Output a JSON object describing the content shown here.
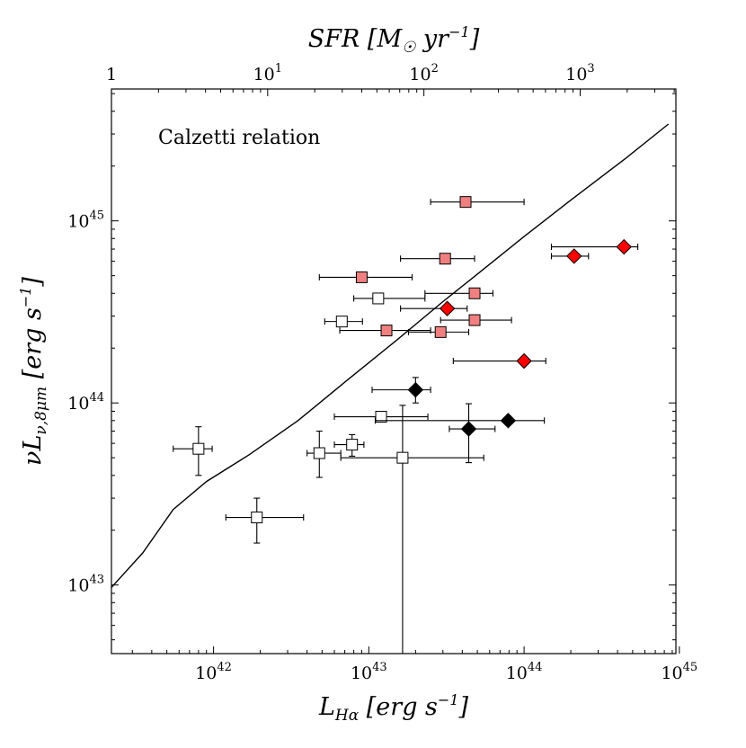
{
  "chart_data": {
    "type": "scatter",
    "title": "",
    "xlabel": "L_Hα [erg s^-1]",
    "ylabel": "νL_ν,8μm [erg s^-1]",
    "top_xlabel": "SFR [M_☉ yr^-1]",
    "xscale": "log",
    "yscale": "log",
    "xlim": [
      2.2e+41,
      9.5e+44
    ],
    "ylim": [
      4.2e+42,
      5.3e+45
    ],
    "top_xlim": [
      1,
      4100
    ],
    "grid": false,
    "x_ticks": [
      {
        "value": 1e+42,
        "base": "10",
        "exp": "42"
      },
      {
        "value": 1e+43,
        "base": "10",
        "exp": "43"
      },
      {
        "value": 1e+44,
        "base": "10",
        "exp": "44"
      },
      {
        "value": 1e+45,
        "base": "10",
        "exp": "45"
      }
    ],
    "y_ticks": [
      {
        "value": 1e+43,
        "base": "10",
        "exp": "43"
      },
      {
        "value": 1e+44,
        "base": "10",
        "exp": "44"
      },
      {
        "value": 1e+45,
        "base": "10",
        "exp": "45"
      }
    ],
    "top_ticks": [
      {
        "value": 1,
        "base": "10",
        "exp": "0",
        "plain": "1"
      },
      {
        "value": 10,
        "base": "10",
        "exp": "1"
      },
      {
        "value": 100,
        "base": "10",
        "exp": "2"
      },
      {
        "value": 1000,
        "base": "10",
        "exp": "3"
      }
    ],
    "annotation": "Calzetti relation",
    "relation_line": [
      [
        2.2e+41,
        9.7e+42
      ],
      [
        3.5e+41,
        1.5e+43
      ],
      [
        5.5e+41,
        2.6e+43
      ],
      [
        9e+41,
        3.7e+43
      ],
      [
        1.7e+42,
        5.2e+43
      ],
      [
        3.5e+42,
        8e+43
      ],
      [
        7e+42,
        1.3e+44
      ],
      [
        1.5e+43,
        2.2e+44
      ],
      [
        3e+43,
        3.6e+44
      ],
      [
        5e+43,
        5.1e+44
      ],
      [
        1e+44,
        8.2e+44
      ],
      [
        2e+44,
        1.3e+45
      ],
      [
        4.5e+44,
        2.2e+45
      ],
      [
        8.5e+44,
        3.4e+45
      ]
    ],
    "series": [
      {
        "marker": "square",
        "color": "#f08080",
        "points": [
          {
            "x": 4.2e+43,
            "y": 1.27e+45,
            "xerr": [
              2.5e+43,
              1e+44
            ]
          },
          {
            "x": 3.1e+43,
            "y": 6.2e+44,
            "xerr": [
              1.6e+43,
              4.8e+43
            ]
          },
          {
            "x": 9e+42,
            "y": 4.9e+44,
            "xerr": [
              4.8e+42,
              1.9e+43
            ]
          },
          {
            "x": 4.8e+43,
            "y": 4e+44,
            "xerr": [
              2.3e+43,
              6.3e+43
            ]
          },
          {
            "x": 4.8e+43,
            "y": 2.85e+44,
            "xerr": [
              2.9e+43,
              8.3e+43
            ]
          },
          {
            "x": 1.3e+43,
            "y": 2.5e+44,
            "xerr": [
              6.5e+42,
              2.5e+43
            ]
          },
          {
            "x": 2.9e+43,
            "y": 2.45e+44,
            "xerr": [
              1.8e+43,
              4.4e+43
            ]
          }
        ]
      },
      {
        "marker": "square",
        "color": "#ffffff",
        "points": [
          {
            "x": 8e+41,
            "y": 5.6e+43,
            "xerr": [
              5.5e+41,
              9.8e+41
            ],
            "yerr": [
              4e+43,
              7.4e+43
            ]
          },
          {
            "x": 1.9e+42,
            "y": 2.35e+43,
            "xerr": [
              1.2e+42,
              3.8e+42
            ],
            "yerr": [
              1.7e+43,
              3e+43
            ]
          },
          {
            "x": 4.8e+42,
            "y": 5.3e+43,
            "xerr": [
              4e+42,
              6.6e+42
            ],
            "yerr": [
              3.9e+43,
              7e+43
            ]
          },
          {
            "x": 7.8e+42,
            "y": 5.9e+43,
            "xerr": [
              6e+42,
              9.3e+42
            ],
            "yerr": [
              5.1e+43,
              6.7e+43
            ]
          },
          {
            "x": 1.65e+43,
            "y": 5e+43,
            "xerr": [
              6.6e+42,
              5.5e+43
            ],
            "yerr": [
              4.2e+42,
              9.7e+43
            ]
          },
          {
            "x": 1.2e+43,
            "y": 8.4e+43,
            "xerr": [
              6e+42,
              2.4e+43
            ]
          },
          {
            "x": 6.7e+42,
            "y": 2.8e+44,
            "xerr": [
              5.2e+42,
              9.1e+42
            ]
          },
          {
            "x": 1.15e+43,
            "y": 3.75e+44,
            "xerr": [
              8e+42,
              2.3e+43
            ]
          }
        ]
      },
      {
        "marker": "diamond",
        "color": "#ff0000",
        "points": [
          {
            "x": 4.4e+44,
            "y": 7.2e+44,
            "xerr": [
              1.5e+44,
              5.4e+44
            ]
          },
          {
            "x": 2.1e+44,
            "y": 6.4e+44,
            "xerr": [
              1.5e+44,
              2.6e+44
            ]
          },
          {
            "x": 3.2e+43,
            "y": 3.3e+44,
            "xerr": [
              1.6e+43,
              4.3e+43
            ]
          },
          {
            "x": 1e+44,
            "y": 1.7e+44,
            "xerr": [
              3.5e+43,
              1.38e+44
            ]
          }
        ]
      },
      {
        "marker": "diamond",
        "color": "#000000",
        "points": [
          {
            "x": 2e+43,
            "y": 1.18e+44,
            "xerr": [
              1.05e+43,
              2.5e+43
            ],
            "yerr": [
              1e+44,
              1.38e+44
            ]
          },
          {
            "x": 4.4e+43,
            "y": 7.2e+43,
            "xerr": [
              3.3e+43,
              6.5e+43
            ],
            "yerr": [
              4.7e+43,
              9.9e+43
            ]
          },
          {
            "x": 7.9e+43,
            "y": 8e+43,
            "xerr": [
              1.1e+43,
              1.35e+44
            ]
          }
        ]
      }
    ]
  }
}
